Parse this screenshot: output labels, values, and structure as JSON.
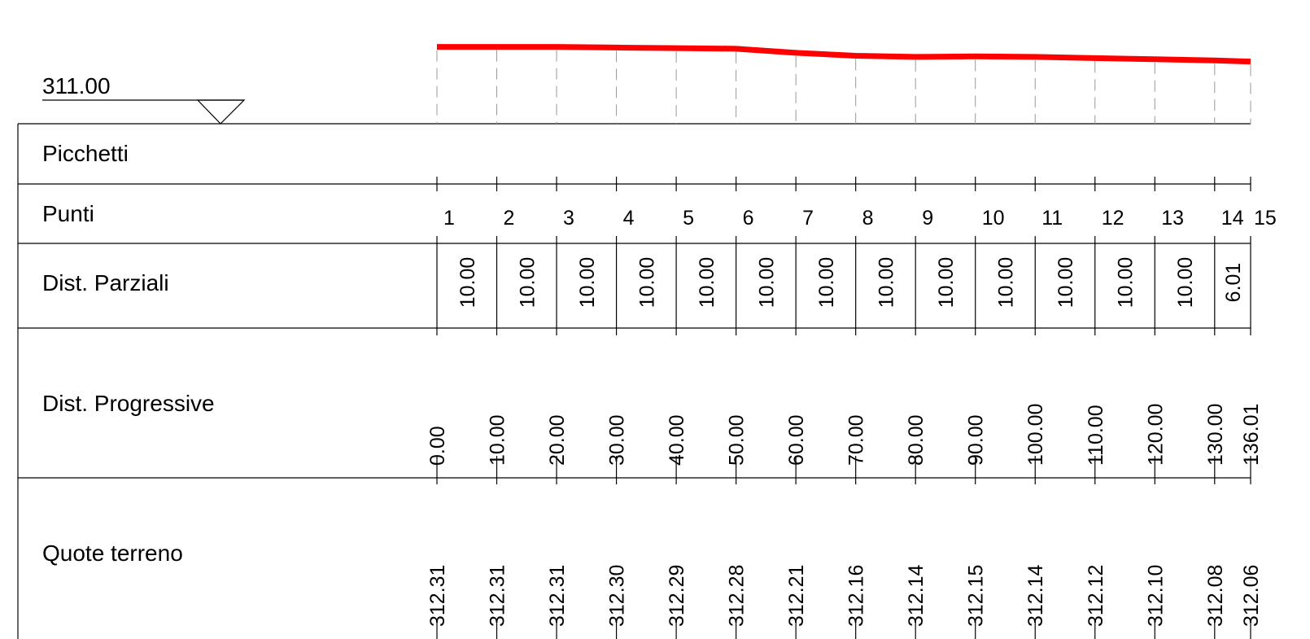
{
  "datum": "311.00",
  "rows": [
    "Picchetti",
    "Punti",
    "Dist. Parziali",
    "Dist. Progressive",
    "Quote terreno"
  ],
  "points": [
    "1",
    "2",
    "3",
    "4",
    "5",
    "6",
    "7",
    "8",
    "9",
    "10",
    "11",
    "12",
    "13",
    "14",
    "15"
  ],
  "partial_distances": [
    "10.00",
    "10.00",
    "10.00",
    "10.00",
    "10.00",
    "10.00",
    "10.00",
    "10.00",
    "10.00",
    "10.00",
    "10.00",
    "10.00",
    "10.00",
    "6.01"
  ],
  "progressive_distances": [
    "0.00",
    "10.00",
    "20.00",
    "30.00",
    "40.00",
    "50.00",
    "60.00",
    "70.00",
    "80.00",
    "90.00",
    "100.00",
    "110.00",
    "120.00",
    "130.00",
    "136.01"
  ],
  "elevations": [
    "312.31",
    "312.31",
    "312.31",
    "312.30",
    "312.29",
    "312.28",
    "312.21",
    "312.16",
    "312.14",
    "312.15",
    "312.14",
    "312.12",
    "312.10",
    "312.08",
    "312.06"
  ]
}
